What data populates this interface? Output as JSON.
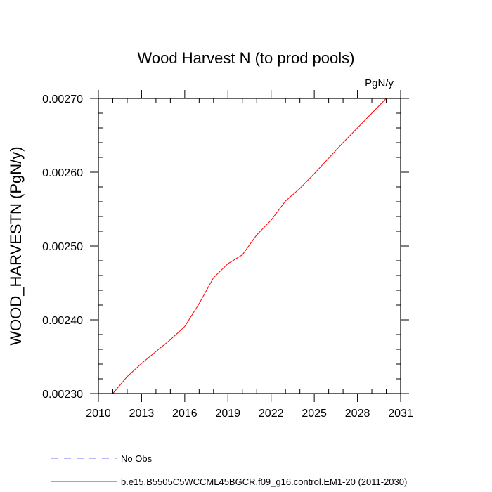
{
  "chart_data": {
    "type": "line",
    "title": "Wood Harvest N (to prod pools)",
    "units_label": "PgN/y",
    "ylabel": "WOOD_HARVESTN  (PgN/y)",
    "xlabel": "",
    "xlim": [
      2010,
      2031
    ],
    "ylim": [
      0.0023,
      0.0027
    ],
    "x_ticks": [
      2010,
      2013,
      2016,
      2019,
      2022,
      2025,
      2028,
      2031
    ],
    "x_tick_labels": [
      "2010",
      "2013",
      "2016",
      "2019",
      "2022",
      "2025",
      "2028",
      "2031"
    ],
    "y_ticks": [
      0.0023,
      0.0024,
      0.0025,
      0.0026,
      0.0027
    ],
    "y_tick_labels": [
      "0.00230",
      "0.00240",
      "0.00250",
      "0.00260",
      "0.00270"
    ],
    "grid": false,
    "legend_placement": "bottom-left",
    "series": [
      {
        "name": "No Obs",
        "color": "#6f6fff",
        "dash": "dashed",
        "x": [],
        "y": []
      },
      {
        "name": "b.e15.B5505C5WCCML45BGCR.f09_g16.control.EM1-20 (2011-2030)",
        "color": "#ff0000",
        "dash": "solid",
        "x": [
          2011,
          2012,
          2013,
          2014,
          2015,
          2016,
          2017,
          2018,
          2019,
          2020,
          2021,
          2022,
          2023,
          2024,
          2025,
          2026,
          2027,
          2028,
          2029,
          2030
        ],
        "y": [
          0.0023,
          0.002323,
          0.002341,
          0.002357,
          0.002373,
          0.002391,
          0.002422,
          0.002457,
          0.002476,
          0.002488,
          0.002515,
          0.002535,
          0.002561,
          0.002578,
          0.002598,
          0.002619,
          0.00264,
          0.00266,
          0.00268,
          0.0027
        ]
      }
    ]
  }
}
